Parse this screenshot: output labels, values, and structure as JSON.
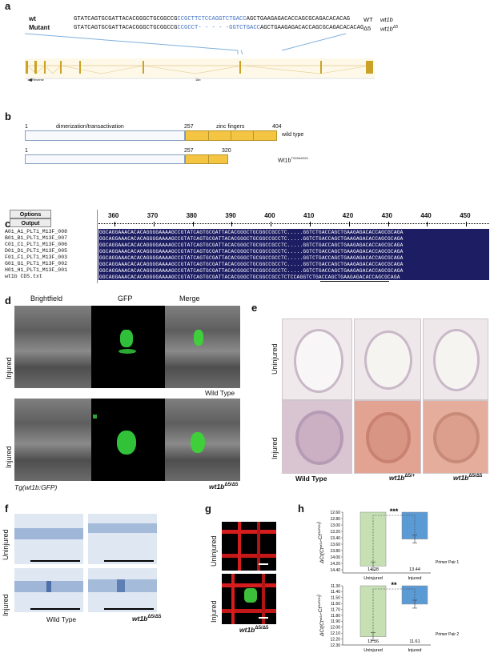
{
  "panels": {
    "a": "a",
    "b": "b",
    "c": "c",
    "d": "d",
    "e": "e",
    "f": "f",
    "g": "g",
    "h": "h"
  },
  "a": {
    "wt_label": "wt",
    "mutant_label": "Mutant",
    "wt_seq_pre": "GTATCAGTGCGATTACACGGGCTGCGGCCG",
    "wt_seq_blue": "CCGCTTCTCCAGGTCTGACC",
    "wt_seq_post": "AGCTGAAGAGACACCAGCGCAGACACACAG",
    "mut_seq_pre": "GTATCAGTGCGATTACACGGGCTGCGGCCG",
    "mut_seq_blue1": "CCGCCT",
    "mut_seq_dash": "- - - - -",
    "mut_seq_blue2": "GGTCTGACC",
    "mut_seq_post": "AGCTGAAGAGACACCAGCGCAGACACACAG",
    "wt_tag": "WT",
    "wt_gene": "wt1b",
    "mut_tag": "Δ5",
    "mut_gene": "wt1b",
    "mut_gene_sup": "Δ5",
    "reverse_label": "Reverse",
    "scale_label": "1kb"
  },
  "b": {
    "wt_start": "1",
    "wt_domain": "dimerization/transactivation",
    "wt_257": "257",
    "wt_zinc": "zinc fingers",
    "wt_end": "404",
    "wt_label": "wild type",
    "mut_start": "1",
    "mut_257": "257",
    "mut_end": "320",
    "mut_label": "Wt1b",
    "mut_label_sup": "T319fsX321"
  },
  "c": {
    "options": "Options",
    "output": "Output",
    "ruler": [
      "360",
      "370",
      "380",
      "390",
      "400",
      "410",
      "420",
      "430",
      "440",
      "450"
    ],
    "rows": [
      {
        "name": "A01_A1_PLT1_M13F_008",
        "seq": "GGCAGGAAACACACAGGGGAAAAGCCGTATCAGTGCGATTACACGGGCTGCGGCCGCCTC.....GGTCTGACCAGCTGAAGAGACACCAGCGCAGA"
      },
      {
        "name": "B01_B1_PLT1_M13F_007",
        "seq": "GGCAGGAAACACACAGGGGAAAAGCCGTATCAGTGCGATTACACGGGCTGCGGCCGCCTC.....GGTCTGACCAGCTGAAGAGACACCAGCGCAGA"
      },
      {
        "name": "C01_C1_PLT1_M13F_006",
        "seq": "GGCAGGAAACACACAGGGGAAAAGCCGTATCAGTGCGATTACACGGGCTGCGGCCGCCTC.....GGTCTGACCAGCTGAAGAGACACCAGCGCAGA"
      },
      {
        "name": "D01_D1_PLT1_M13F_005",
        "seq": "GGCAGGAAACACACAGGGGAAAAGCCGTATCAGTGCGATTACACGGGCTGCGGCCGCCTC.....GGTCTGACCAGCTGAAGAGACACCAGCGCAGA"
      },
      {
        "name": "F01_F1_PLT1_M13F_003",
        "seq": "GGCAGGAAACACACAGGGGAAAAGCCGTATCAGTGCGATTACACGGGCTGCGGCCGCCTC.....GGTCTGACCAGCTGAAGAGACACCAGCGCAGA"
      },
      {
        "name": "G01_G1_PLT1_M13F_002",
        "seq": "GGCAGGAAACACACAGGGGAAAAGCCGTATCAGTGCGATTACACGGGCTGCGGCCGCCTC.....GGTCTGACCAGCTGAAGAGACACCAGCGCAGA"
      },
      {
        "name": "H01_H1_PLT1_M13F_001",
        "seq": "GGCAGGAAACACACAGGGGAAAAGCCGTATCAGTGCGATTACACGGGCTGCGGCCGCCTC.....GGTCTGACCAGCTGAAGAGACACCAGCGCAGA"
      },
      {
        "name": "wt1b CDS.txt",
        "seq": "GGCAGGAAACACACAGGGGAAAAGCCGTATCAGTGCGATTACACGGGCTGCGGCCGCCTCTCCAGGTCTGACCAGCTGAAGAGACACCAGCGCAGA"
      }
    ]
  },
  "d": {
    "col_brightfield": "Brightfield",
    "col_gfp": "GFP",
    "col_merge": "Merge",
    "row_injured1": "Injured",
    "row_injured2": "Injured",
    "wild_type": "Wild Type",
    "tg_label": "Tg(wt1b:GFP)",
    "mut_label": "wt1b",
    "mut_sup": "Δ5/Δ5"
  },
  "e": {
    "row_uninjured": "Uninjured",
    "row_injured": "Injured",
    "col_wt": "Wild Type",
    "col_het": "wt1b",
    "col_het_sup": "Δ5/+",
    "col_hom": "wt1b",
    "col_hom_sup": "Δ5/Δ5"
  },
  "f": {
    "row_uninjured": "Uninjured",
    "row_injured": "Injured",
    "col_wt": "Wild Type",
    "col_mut": "wt1b",
    "col_mut_sup": "Δ5/Δ5"
  },
  "g": {
    "row_uninjured": "Uninjured",
    "row_injured": "Injured",
    "mut_label": "wt1b",
    "mut_sup": "Δ5/Δ5"
  },
  "h": {
    "charts_text": {
      "ylabel1": "ΔCt(Ct",
      "ylabel_sup1": "wt1a",
      "ylabel_mid": "-Ct",
      "ylabel_sup2": "GAPDH",
      "ylabel_end": ")",
      "sig1": "***",
      "sig2": "**",
      "primer1": "Primer Pair 1",
      "primer2": "Primer Pair 2"
    }
  },
  "chart_data": [
    {
      "type": "bar",
      "categories": [
        "Uninjured",
        "Injured"
      ],
      "values": [
        14.28,
        13.44
      ],
      "ylim": [
        14.5,
        12.6
      ],
      "yticks": [
        "12.60",
        "12.80",
        "13.00",
        "13.20",
        "13.40",
        "13.60",
        "13.80",
        "14.00",
        "14.20",
        "14.40"
      ],
      "colors": [
        "#c6e0b4",
        "#5b9bd5"
      ],
      "annotation": "***",
      "footnote": "Primer Pair 1"
    },
    {
      "type": "bar",
      "categories": [
        "Uninjured",
        "Injured"
      ],
      "values": [
        12.16,
        11.61
      ],
      "ylim": [
        12.3,
        11.3
      ],
      "yticks": [
        "11.30",
        "11.40",
        "11.50",
        "11.60",
        "11.70",
        "11.80",
        "11.90",
        "12.00",
        "12.10",
        "12.20",
        "12.30"
      ],
      "colors": [
        "#c6e0b4",
        "#5b9bd5"
      ],
      "annotation": "**",
      "footnote": "Primer Pair 2"
    }
  ]
}
